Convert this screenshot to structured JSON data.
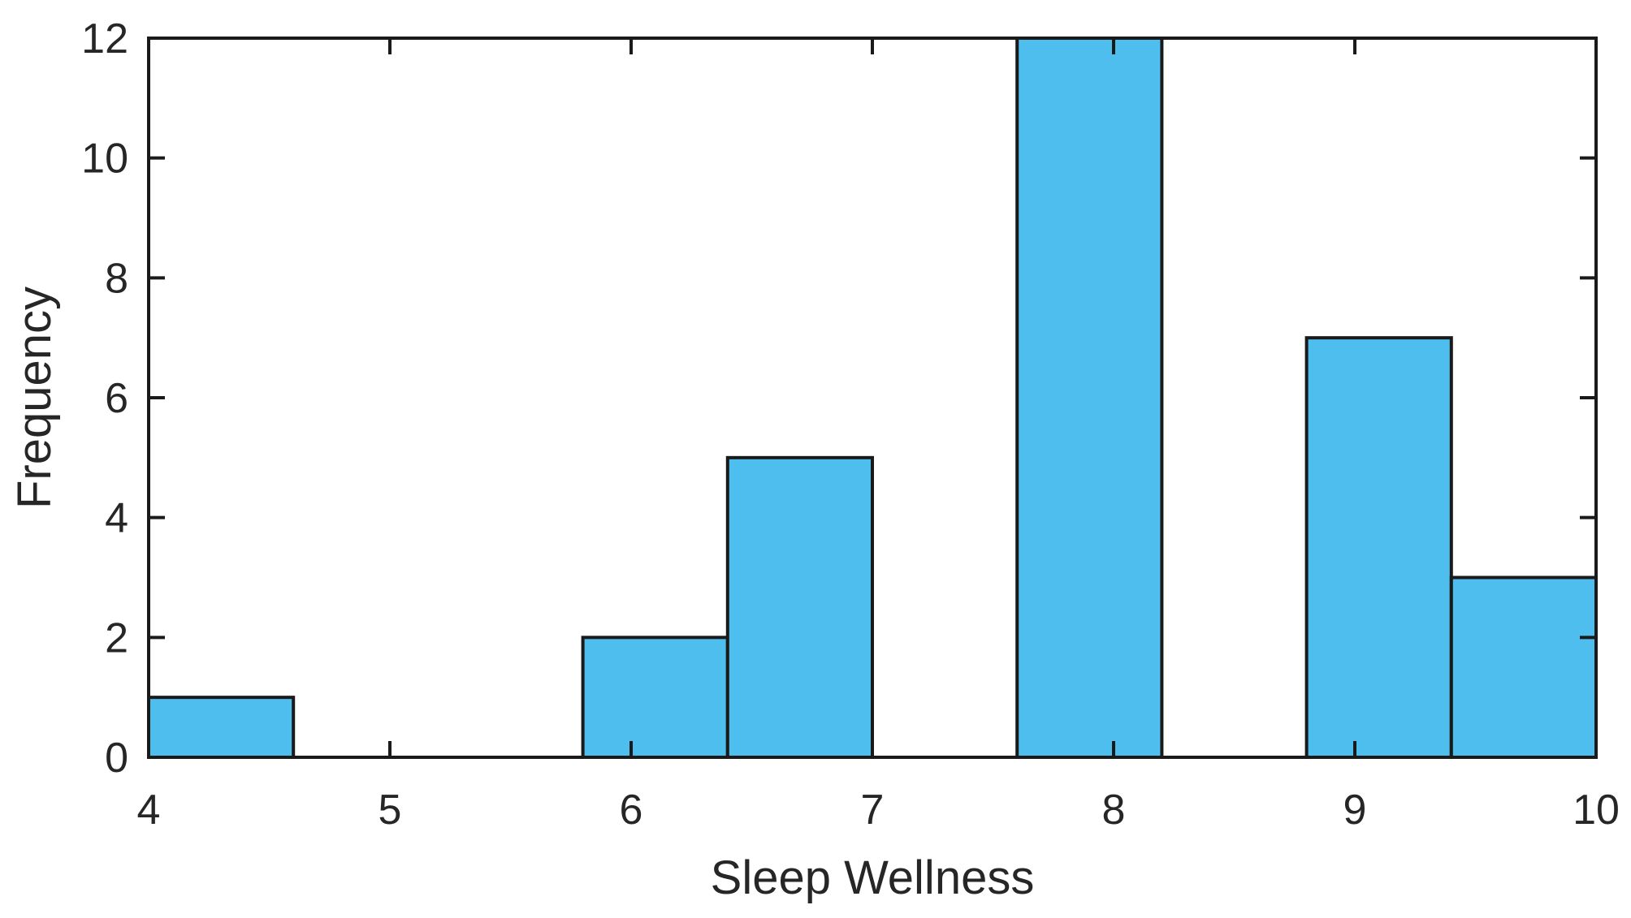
{
  "chart_data": {
    "type": "bar",
    "subtype": "histogram",
    "title": "",
    "xlabel": "Sleep Wellness",
    "ylabel": "Frequency",
    "xlim": [
      4,
      10
    ],
    "ylim": [
      0,
      12
    ],
    "x_ticks": [
      "4",
      "5",
      "6",
      "7",
      "8",
      "9",
      "10"
    ],
    "x_tick_values": [
      4,
      5,
      6,
      7,
      8,
      9,
      10
    ],
    "y_ticks": [
      "0",
      "2",
      "4",
      "6",
      "8",
      "10",
      "12"
    ],
    "y_tick_values": [
      0,
      2,
      4,
      6,
      8,
      10,
      12
    ],
    "bin_width": 0.6,
    "bins": [
      {
        "x0": 4.0,
        "x1": 4.6,
        "count": 1
      },
      {
        "x0": 5.8,
        "x1": 6.4,
        "count": 2
      },
      {
        "x0": 6.4,
        "x1": 7.0,
        "count": 5
      },
      {
        "x0": 7.6,
        "x1": 8.2,
        "count": 12
      },
      {
        "x0": 8.8,
        "x1": 9.4,
        "count": 7
      },
      {
        "x0": 9.4,
        "x1": 10.0,
        "count": 3
      }
    ],
    "grid": false,
    "legend": null,
    "box": true,
    "tick_direction": "in",
    "colors": {
      "bar_fill": "#4DBEEE",
      "bar_edge": "#1A1A1A",
      "axis": "#1A1A1A",
      "tick_label": "#262626",
      "background": "#FFFFFF"
    }
  }
}
